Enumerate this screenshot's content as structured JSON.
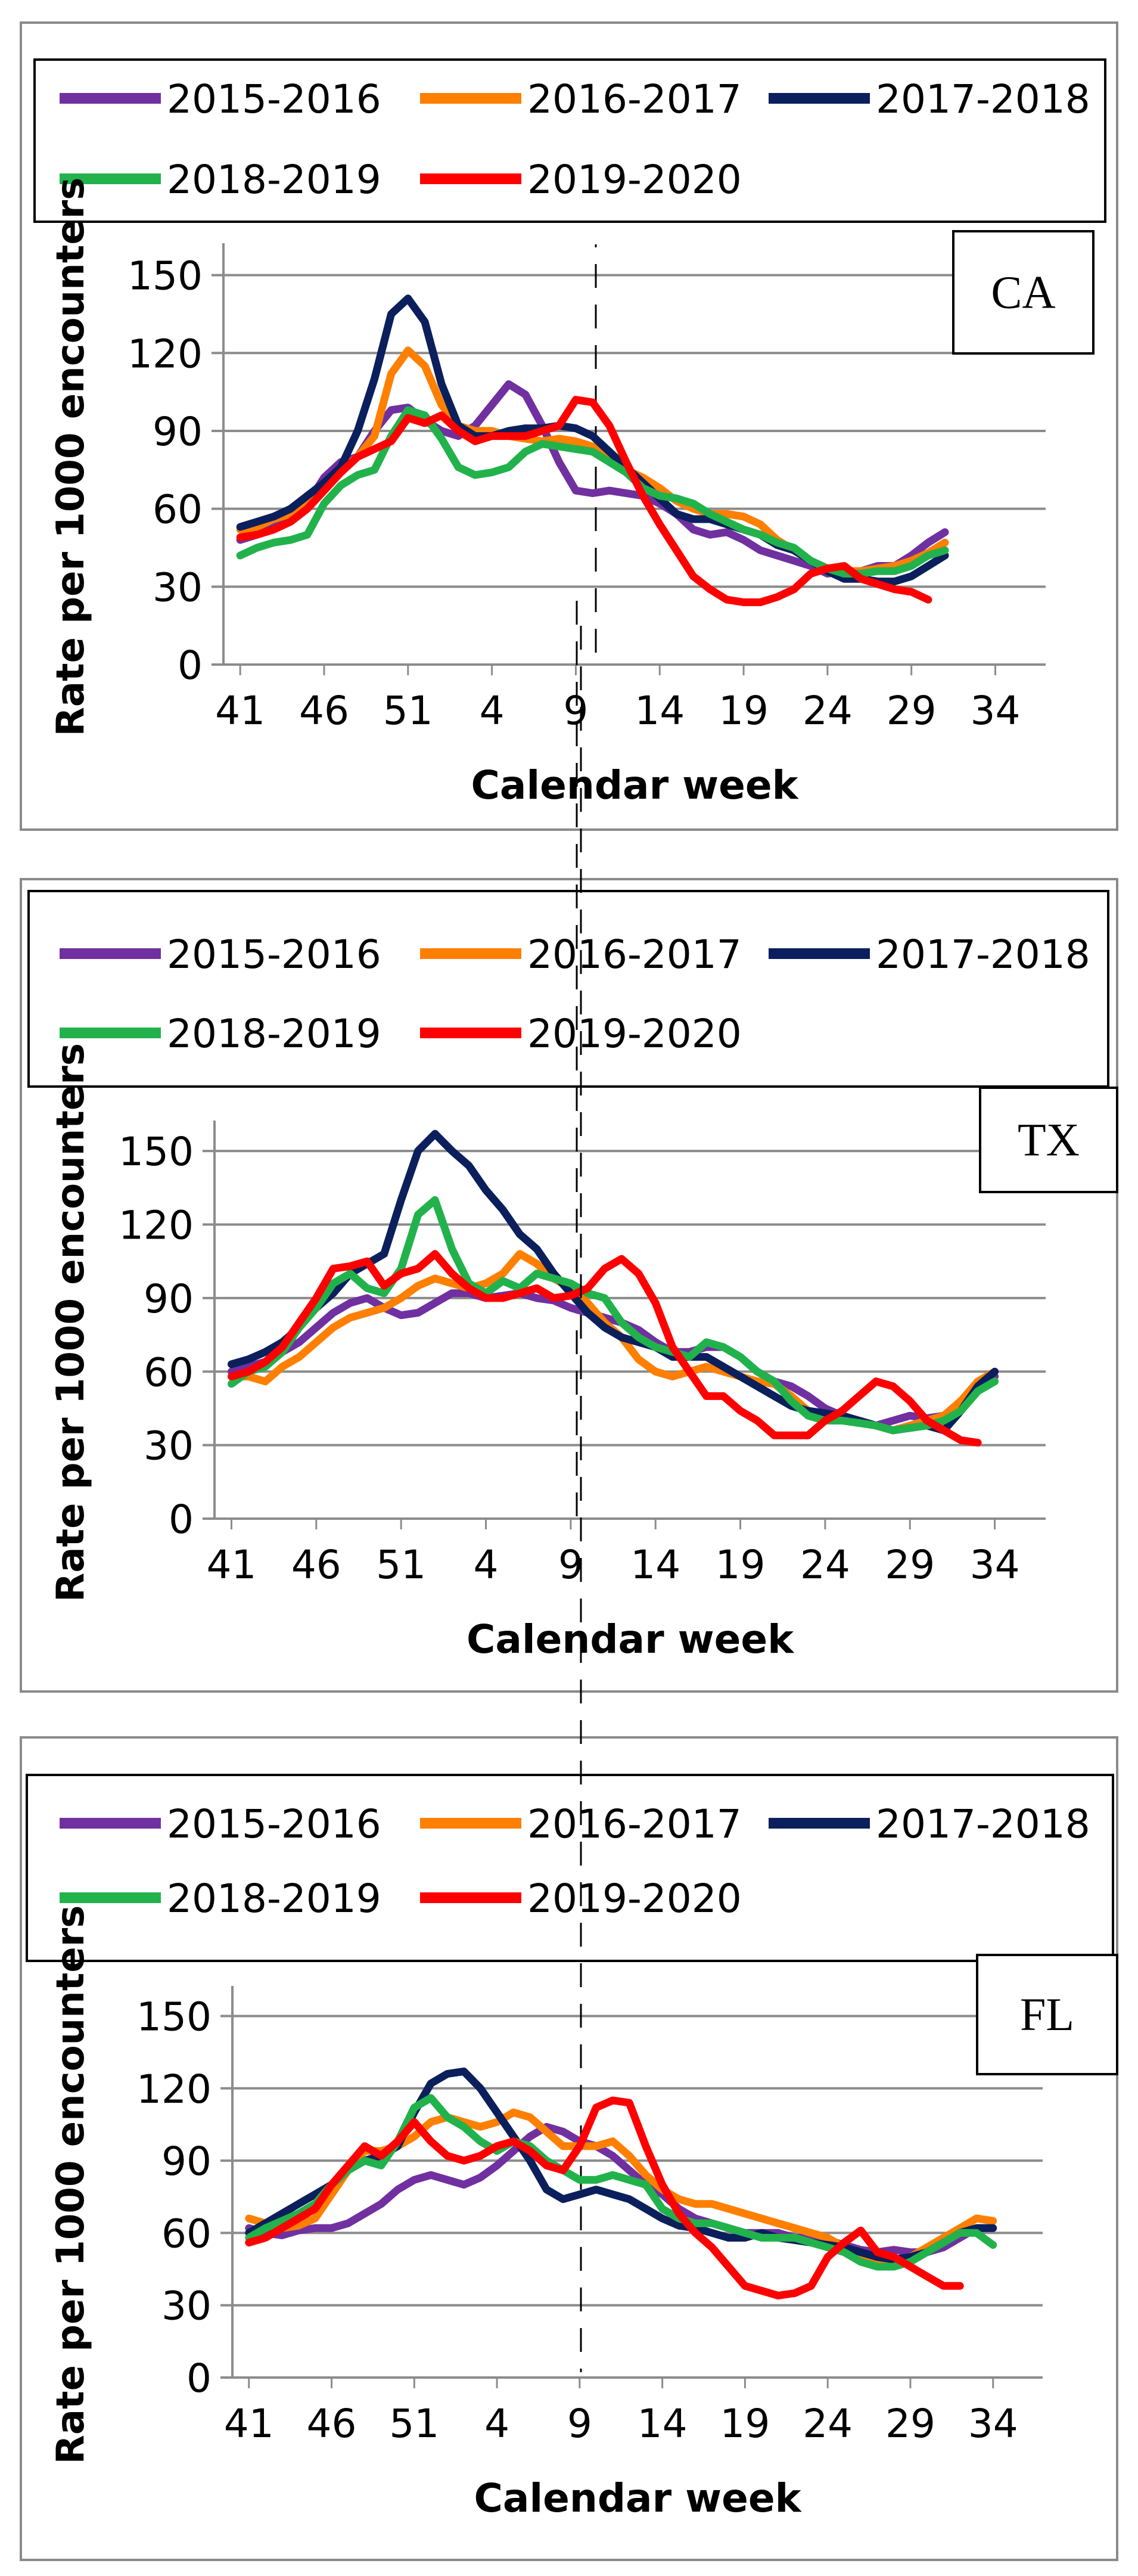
{
  "chart_data": [
    {
      "type": "line",
      "region_label": "CA",
      "xlabel": "Calendar week",
      "ylabel": "Rate per 1000 encounters",
      "x_tick_labels": [
        "41",
        "46",
        "51",
        "4",
        "9",
        "14",
        "19",
        "24",
        "29",
        "34"
      ],
      "y_tick_labels": [
        "0",
        "30",
        "60",
        "90",
        "120",
        "150"
      ],
      "ylim": [
        0,
        160
      ],
      "grid": "horizontal",
      "legend_position": "top",
      "series": [
        {
          "name": "2015-2016",
          "color": "#7030A0",
          "values": [
            48,
            50,
            53,
            56,
            62,
            72,
            78,
            80,
            90,
            98,
            99,
            94,
            90,
            88,
            92,
            100,
            108,
            104,
            92,
            78,
            67,
            66,
            67,
            66,
            65,
            62,
            58,
            52,
            50,
            51,
            48,
            44,
            42,
            40,
            38,
            35,
            36,
            36,
            38,
            38,
            42,
            47,
            51
          ]
        },
        {
          "name": "2016-2017",
          "color": "#FF7F00",
          "values": [
            52,
            53,
            56,
            58,
            63,
            68,
            75,
            80,
            88,
            112,
            121,
            115,
            100,
            92,
            90,
            90,
            88,
            87,
            86,
            87,
            86,
            84,
            80,
            75,
            72,
            68,
            63,
            60,
            58,
            58,
            57,
            54,
            48,
            44,
            40,
            37,
            36,
            36,
            37,
            38,
            40,
            43,
            47
          ]
        },
        {
          "name": "2017-2018",
          "color": "#0B1F5C",
          "values": [
            53,
            55,
            57,
            60,
            65,
            70,
            76,
            90,
            110,
            135,
            141,
            132,
            108,
            92,
            88,
            88,
            90,
            91,
            91,
            92,
            91,
            88,
            82,
            76,
            70,
            64,
            58,
            56,
            56,
            54,
            52,
            50,
            46,
            44,
            40,
            36,
            33,
            33,
            32,
            32,
            34,
            38,
            42
          ]
        },
        {
          "name": "2018-2019",
          "color": "#22B24C",
          "values": [
            42,
            45,
            47,
            48,
            50,
            62,
            69,
            73,
            75,
            88,
            98,
            96,
            87,
            76,
            73,
            74,
            76,
            82,
            85,
            84,
            83,
            82,
            78,
            74,
            68,
            65,
            64,
            62,
            58,
            55,
            52,
            50,
            47,
            45,
            40,
            37,
            35,
            35,
            36,
            36,
            38,
            42,
            44
          ]
        },
        {
          "name": "2019-2020",
          "color": "#FF0000",
          "values": [
            49,
            50,
            52,
            55,
            60,
            67,
            74,
            80,
            83,
            86,
            95,
            93,
            96,
            90,
            86,
            88,
            88,
            88,
            90,
            92,
            102,
            101,
            92,
            78,
            65,
            54,
            44,
            34,
            29,
            25,
            24,
            24,
            26,
            29,
            35,
            37,
            38,
            33,
            31,
            29,
            28,
            25
          ]
        }
      ]
    },
    {
      "type": "line",
      "region_label": "TX",
      "xlabel": "Calendar week",
      "ylabel": "Rate per 1000 encounters",
      "x_tick_labels": [
        "41",
        "46",
        "51",
        "4",
        "9",
        "14",
        "19",
        "24",
        "29",
        "34"
      ],
      "y_tick_labels": [
        "0",
        "30",
        "60",
        "90",
        "120",
        "150"
      ],
      "ylim": [
        0,
        160
      ],
      "grid": "horizontal",
      "legend_position": "top",
      "series": [
        {
          "name": "2015-2016",
          "color": "#7030A0",
          "values": [
            60,
            62,
            64,
            68,
            72,
            78,
            84,
            88,
            90,
            86,
            83,
            84,
            88,
            92,
            92,
            90,
            91,
            92,
            90,
            89,
            86,
            84,
            82,
            80,
            77,
            72,
            68,
            68,
            70,
            70,
            66,
            60,
            56,
            54,
            50,
            45,
            42,
            40,
            38,
            40,
            42,
            41,
            42,
            48,
            55,
            58
          ]
        },
        {
          "name": "2016-2017",
          "color": "#FF7F00",
          "values": [
            58,
            58,
            56,
            62,
            66,
            72,
            78,
            82,
            84,
            86,
            90,
            95,
            98,
            96,
            94,
            96,
            100,
            108,
            104,
            98,
            94,
            88,
            80,
            74,
            65,
            60,
            58,
            60,
            62,
            60,
            58,
            56,
            55,
            50,
            44,
            42,
            40,
            40,
            38,
            36,
            38,
            40,
            42,
            48,
            56,
            60
          ]
        },
        {
          "name": "2017-2018",
          "color": "#0B1F5C",
          "values": [
            63,
            65,
            68,
            72,
            78,
            86,
            92,
            100,
            104,
            108,
            130,
            150,
            157,
            150,
            144,
            134,
            126,
            116,
            110,
            100,
            92,
            84,
            78,
            74,
            72,
            70,
            66,
            66,
            66,
            62,
            58,
            54,
            50,
            46,
            44,
            43,
            42,
            40,
            38,
            36,
            37,
            38,
            36,
            44,
            54,
            60
          ]
        },
        {
          "name": "2018-2019",
          "color": "#22B24C",
          "values": [
            55,
            60,
            62,
            68,
            78,
            86,
            96,
            100,
            94,
            92,
            102,
            124,
            130,
            110,
            96,
            92,
            97,
            94,
            100,
            98,
            96,
            92,
            90,
            80,
            74,
            70,
            68,
            66,
            72,
            70,
            66,
            60,
            56,
            48,
            42,
            40,
            40,
            39,
            38,
            36,
            37,
            38,
            40,
            44,
            52,
            56
          ]
        },
        {
          "name": "2019-2020",
          "color": "#FF0000",
          "values": [
            58,
            60,
            64,
            70,
            80,
            90,
            102,
            103,
            105,
            95,
            100,
            102,
            108,
            100,
            94,
            90,
            90,
            92,
            94,
            90,
            91,
            94,
            102,
            106,
            100,
            88,
            70,
            60,
            50,
            50,
            44,
            40,
            34,
            34,
            34,
            40,
            44,
            50,
            56,
            54,
            48,
            40,
            36,
            32,
            31
          ]
        }
      ]
    },
    {
      "type": "line",
      "region_label": "FL",
      "xlabel": "Calendar week",
      "ylabel": "Rate per 1000 encounters",
      "x_tick_labels": [
        "41",
        "46",
        "51",
        "4",
        "9",
        "14",
        "19",
        "24",
        "29",
        "34"
      ],
      "y_tick_labels": [
        "0",
        "30",
        "60",
        "90",
        "120",
        "150"
      ],
      "ylim": [
        0,
        160
      ],
      "grid": "horizontal",
      "legend_position": "top",
      "series": [
        {
          "name": "2015-2016",
          "color": "#7030A0",
          "values": [
            62,
            60,
            59,
            61,
            62,
            62,
            64,
            68,
            72,
            78,
            82,
            84,
            82,
            80,
            83,
            88,
            94,
            100,
            104,
            102,
            98,
            96,
            92,
            86,
            80,
            76,
            70,
            66,
            64,
            62,
            60,
            60,
            60,
            58,
            58,
            57,
            55,
            53,
            52,
            53,
            52,
            52,
            54,
            58,
            62,
            62
          ]
        },
        {
          "name": "2016-2017",
          "color": "#FF7F00",
          "values": [
            66,
            64,
            62,
            63,
            66,
            76,
            86,
            94,
            94,
            96,
            100,
            106,
            108,
            106,
            104,
            106,
            110,
            108,
            102,
            96,
            96,
            96,
            98,
            92,
            84,
            78,
            74,
            72,
            72,
            70,
            68,
            66,
            64,
            62,
            60,
            58,
            54,
            50,
            48,
            48,
            50,
            54,
            58,
            62,
            66,
            65
          ]
        },
        {
          "name": "2017-2018",
          "color": "#0B1F5C",
          "values": [
            60,
            64,
            68,
            72,
            76,
            80,
            86,
            90,
            92,
            96,
            110,
            122,
            126,
            127,
            120,
            110,
            100,
            90,
            78,
            74,
            76,
            78,
            76,
            74,
            70,
            66,
            63,
            62,
            60,
            58,
            58,
            60,
            58,
            57,
            56,
            55,
            54,
            52,
            50,
            49,
            50,
            52,
            56,
            60,
            62,
            62
          ]
        },
        {
          "name": "2018-2019",
          "color": "#22B24C",
          "values": [
            58,
            62,
            65,
            68,
            72,
            80,
            86,
            90,
            88,
            98,
            112,
            116,
            108,
            104,
            98,
            94,
            98,
            96,
            90,
            86,
            82,
            82,
            84,
            82,
            80,
            70,
            66,
            64,
            64,
            62,
            60,
            58,
            58,
            58,
            56,
            54,
            52,
            48,
            46,
            46,
            48,
            52,
            56,
            60,
            60,
            55
          ]
        },
        {
          "name": "2019-2020",
          "color": "#FF0000",
          "values": [
            56,
            58,
            62,
            66,
            70,
            80,
            88,
            96,
            92,
            98,
            106,
            98,
            92,
            90,
            92,
            96,
            98,
            94,
            88,
            86,
            96,
            112,
            115,
            114,
            96,
            80,
            68,
            60,
            54,
            46,
            38,
            36,
            34,
            35,
            38,
            50,
            56,
            61,
            52,
            50,
            46,
            42,
            38,
            38
          ]
        }
      ]
    }
  ]
}
